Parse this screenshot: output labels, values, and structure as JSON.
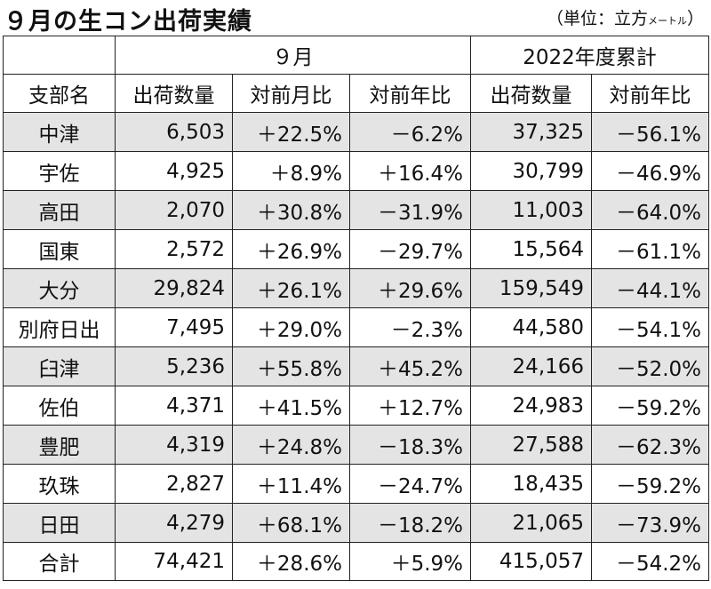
{
  "title": "９月の生コン出荷実績",
  "unit": {
    "main": "（単位：立方",
    "small": "メートル",
    "close": "）"
  },
  "groups": {
    "month": "９月",
    "cumulative": "2022年度累計"
  },
  "columns": [
    "支部名",
    "出荷数量",
    "対前月比",
    "対前年比",
    "出荷数量",
    "対前年比"
  ],
  "rows": [
    [
      "中津",
      "6,503",
      "＋22.5%",
      "－6.2%",
      "37,325",
      "－56.1%"
    ],
    [
      "宇佐",
      "4,925",
      "＋8.9%",
      "＋16.4%",
      "30,799",
      "－46.9%"
    ],
    [
      "高田",
      "2,070",
      "＋30.8%",
      "－31.9%",
      "11,003",
      "－64.0%"
    ],
    [
      "国東",
      "2,572",
      "＋26.9%",
      "－29.7%",
      "15,564",
      "－61.1%"
    ],
    [
      "大分",
      "29,824",
      "＋26.1%",
      "＋29.6%",
      "159,549",
      "－44.1%"
    ],
    [
      "別府日出",
      "7,495",
      "＋29.0%",
      "－2.3%",
      "44,580",
      "－54.1%"
    ],
    [
      "臼津",
      "5,236",
      "＋55.8%",
      "＋45.2%",
      "24,166",
      "－52.0%"
    ],
    [
      "佐伯",
      "4,371",
      "＋41.5%",
      "＋12.7%",
      "24,983",
      "－59.2%"
    ],
    [
      "豊肥",
      "4,319",
      "＋24.8%",
      "－18.3%",
      "27,588",
      "－62.3%"
    ],
    [
      "玖珠",
      "2,827",
      "＋11.4%",
      "－24.7%",
      "18,435",
      "－59.2%"
    ],
    [
      "日田",
      "4,279",
      "＋68.1%",
      "－18.2%",
      "21,065",
      "－73.9%"
    ]
  ],
  "total": [
    "合計",
    "74,421",
    "＋28.6%",
    "＋5.9%",
    "415,057",
    "－54.2%"
  ]
}
